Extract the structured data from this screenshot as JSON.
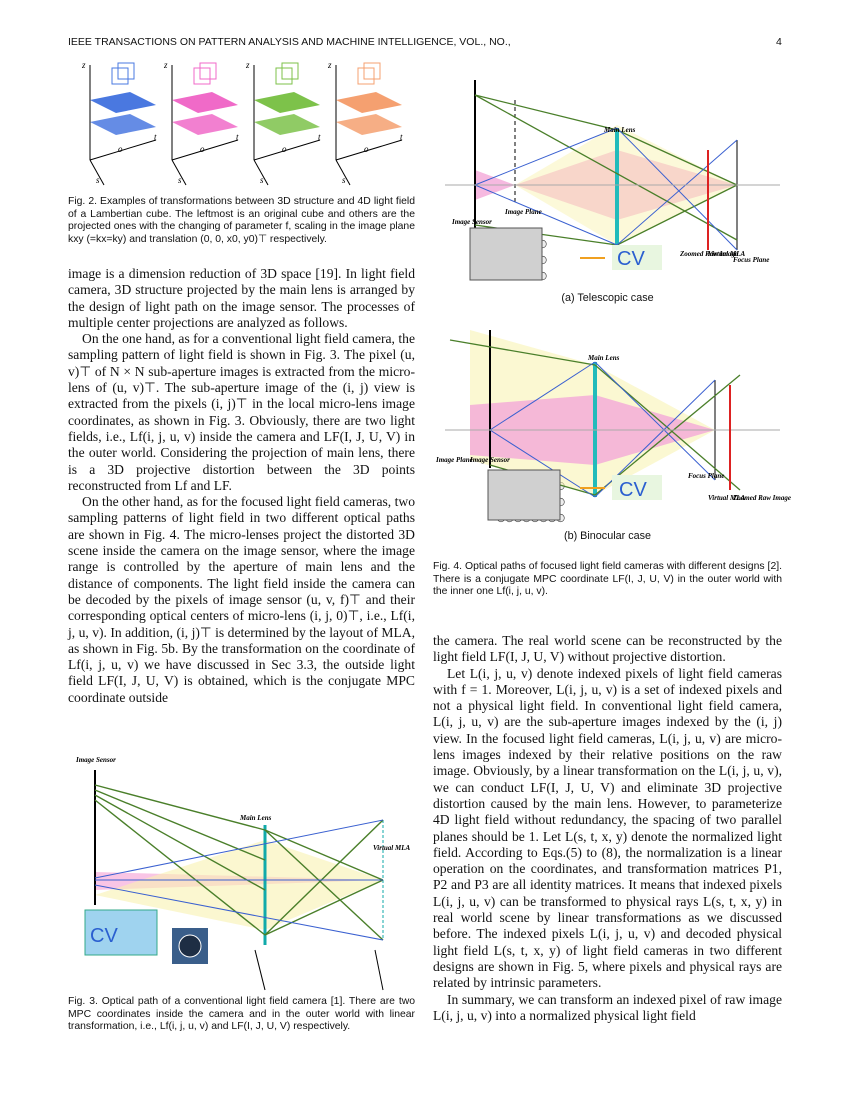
{
  "header": {
    "title": "IEEE TRANSACTIONS ON PATTERN ANALYSIS AND MACHINE INTELLIGENCE, VOL., NO.,",
    "page": "4"
  },
  "figure2": {
    "axis_labels": [
      "z",
      "t",
      "s",
      "o"
    ],
    "caption": "Fig. 2. Examples of transformations between 3D structure and 4D light field of a Lambertian cube. The leftmost is an original cube and others are the projected ones with the changing of parameter f, scaling in the image plane kxy (=kx=ky) and translation (0, 0, x0, y0)⊤ respectively."
  },
  "figure3": {
    "labels": [
      "Image Sensor",
      "Main Lens",
      "Virtual MLA",
      "CV"
    ],
    "caption": "Fig. 3. Optical path of a conventional light field camera [1]. There are two MPC coordinates inside the camera and in the outer world with linear transformation, i.e., Lf(i, j, u, v) and LF(I, J, U, V) respectively."
  },
  "figure4": {
    "panel_a": {
      "labels": [
        "Main Lens",
        "Image Plane",
        "Image Sensor",
        "Zoomed Raw Image",
        "Virtual MLA",
        "Focus Plane",
        "CV"
      ],
      "subcaption": "(a) Telescopic case"
    },
    "panel_b": {
      "labels": [
        "Main Lens",
        "Image Plane",
        "Image Sensor",
        "Focus Plane",
        "Virtual MLA",
        "Zoomed Raw Image",
        "CV"
      ],
      "subcaption": "(b) Binocular case"
    },
    "caption": "Fig. 4. Optical paths of focused light field cameras with different designs [2]. There is a conjugate MPC coordinate LF(I, J, U, V) in the outer world with the inner one Lf(i, j, u, v)."
  },
  "body": {
    "left": [
      "image is a dimension reduction of 3D space [19]. In light field camera, 3D structure projected by the main lens is arranged by the design of light path on the image sensor. The processes of multiple center projections are analyzed as follows.",
      "On the one hand, as for a conventional light field camera, the sampling pattern of light field is shown in Fig. 3. The pixel (u, v)⊤ of N × N sub-aperture images is extracted from the micro-lens of (u, v)⊤. The sub-aperture image of the (i, j) view is extracted from the pixels (i, j)⊤ in the local micro-lens image coordinates, as shown in Fig. 3. Obviously, there are two light fields, i.e., Lf(i, j, u, v) inside the camera and LF(I, J, U, V) in the outer world. Considering the projection of main lens, there is a 3D projective distortion between the 3D points reconstructed from Lf and LF.",
      "On the other hand, as for the focused light field cameras, two sampling patterns of light field in two different optical paths are shown in Fig. 4. The micro-lenses project the distorted 3D scene inside the camera on the image sensor, where the image range is controlled by the aperture of main lens and the distance of components. The light field inside the camera can be decoded by the pixels of image sensor (u, v, f)⊤ and their corresponding optical centers of micro-lens (i, j, 0)⊤, i.e., Lf(i, j, u, v). In addition, (i, j)⊤ is determined by the layout of MLA, as shown in Fig. 5b. By the transformation on the coordinate of Lf(i, j, u, v) we have discussed in Sec 3.3, the outside light field LF(I, J, U, V) is obtained, which is the conjugate MPC coordinate outside"
    ],
    "right": [
      "the camera. The real world scene can be reconstructed by the light field LF(I, J, U, V) without projective distortion.",
      "Let L(i, j, u, v) denote indexed pixels of light field cameras with f = 1. Moreover, L(i, j, u, v) is a set of indexed pixels and not a physical light field. In conventional light field camera, L(i, j, u, v) are the sub-aperture images indexed by the (i, j) view. In the focused light field cameras, L(i, j, u, v) are micro-lens images indexed by their relative positions on the raw image. Obviously, by a linear transformation on the L(i, j, u, v), we can conduct LF(I, J, U, V) and eliminate 3D projective distortion caused by the main lens. However, to parameterize 4D light field without redundancy, the spacing of two parallel planes should be 1. Let L(s, t, x, y) denote the normalized light field. According to Eqs.(5) to (8), the normalization is a linear operation on the coordinates, and transformation matrices P1, P2 and P3 are all identity matrices. It means that indexed pixels L(i, j, u, v) can be transformed to physical rays L(s, t, x, y) in real world scene by linear transformations as we discussed before. The indexed pixels L(i, j, u, v) and decoded physical light field L(s, t, x, y) of light field cameras in two different designs are shown in Fig. 5, where pixels and physical rays are related by intrinsic parameters.",
      "In summary, we can transform an indexed pixel of raw image L(i, j, u, v) into a normalized physical light field"
    ]
  }
}
